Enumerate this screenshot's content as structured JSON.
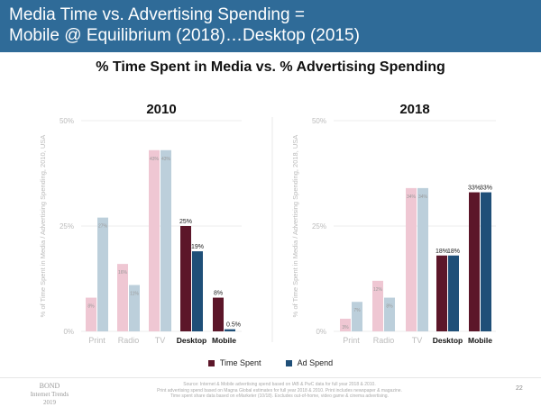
{
  "header": {
    "line1": "Media Time vs. Advertising Spending =",
    "line2": "Mobile @ Equilibrium (2018)…Desktop (2015)"
  },
  "subtitle": "% Time Spent in Media vs. % Advertising Spending",
  "colors": {
    "time_spent": "#5c1629",
    "ad_spend": "#1f4f78",
    "time_spent_light": "#efc7d3",
    "ad_spend_light": "#bccfdb",
    "header": "#2f6b98"
  },
  "chart_data": [
    {
      "type": "bar",
      "title": "2010",
      "ylabel": "% of Time Spent in Media / Advertising Spending, 2010, USA",
      "ylim": [
        0,
        50
      ],
      "yticks": [
        "0%",
        "25%",
        "50%"
      ],
      "categories": [
        "Print",
        "Radio",
        "TV",
        "Desktop",
        "Mobile"
      ],
      "series": [
        {
          "name": "Time Spent",
          "values": [
            8,
            16,
            43,
            25,
            8
          ],
          "labels": [
            "8%",
            "16%",
            "43%",
            "25%",
            "8%"
          ]
        },
        {
          "name": "Ad Spend",
          "values": [
            27,
            11,
            43,
            19,
            0.5
          ],
          "labels": [
            "27%",
            "11%",
            "43%",
            "19%",
            "0.5%"
          ]
        }
      ],
      "legend": "bottom",
      "grid": true
    },
    {
      "type": "bar",
      "title": "2018",
      "ylabel": "% of Time Spent in Media / Advertising Spending, 2018, USA",
      "ylim": [
        0,
        50
      ],
      "yticks": [
        "0%",
        "25%",
        "50%"
      ],
      "categories": [
        "Print",
        "Radio",
        "TV",
        "Desktop",
        "Mobile"
      ],
      "series": [
        {
          "name": "Time Spent",
          "values": [
            3,
            12,
            34,
            18,
            33
          ],
          "labels": [
            "3%",
            "12%",
            "34%",
            "18%",
            "33%"
          ]
        },
        {
          "name": "Ad Spend",
          "values": [
            7,
            8,
            34,
            18,
            33
          ],
          "labels": [
            "7%",
            "8%",
            "34%",
            "18%",
            "33%"
          ]
        }
      ],
      "legend": "bottom",
      "grid": true
    }
  ],
  "legend": {
    "time": "Time Spent",
    "ad": "Ad Spend"
  },
  "footer": {
    "logo1": "BOND",
    "logo2": "Internet Trends",
    "logo3": "2019",
    "source1": "Source: Internet & Mobile advertising spend based on IAB & PwC data for full year 2018 & 2010.",
    "source2": "Print advertising spend based on Magna Global estimates for full year 2018 & 2010. Print includes newspaper & magazine.",
    "source3": "Time spent share data based on eMarketer (10/18). Excludes out-of-home, video game & cinema advertising.",
    "page": "22"
  }
}
